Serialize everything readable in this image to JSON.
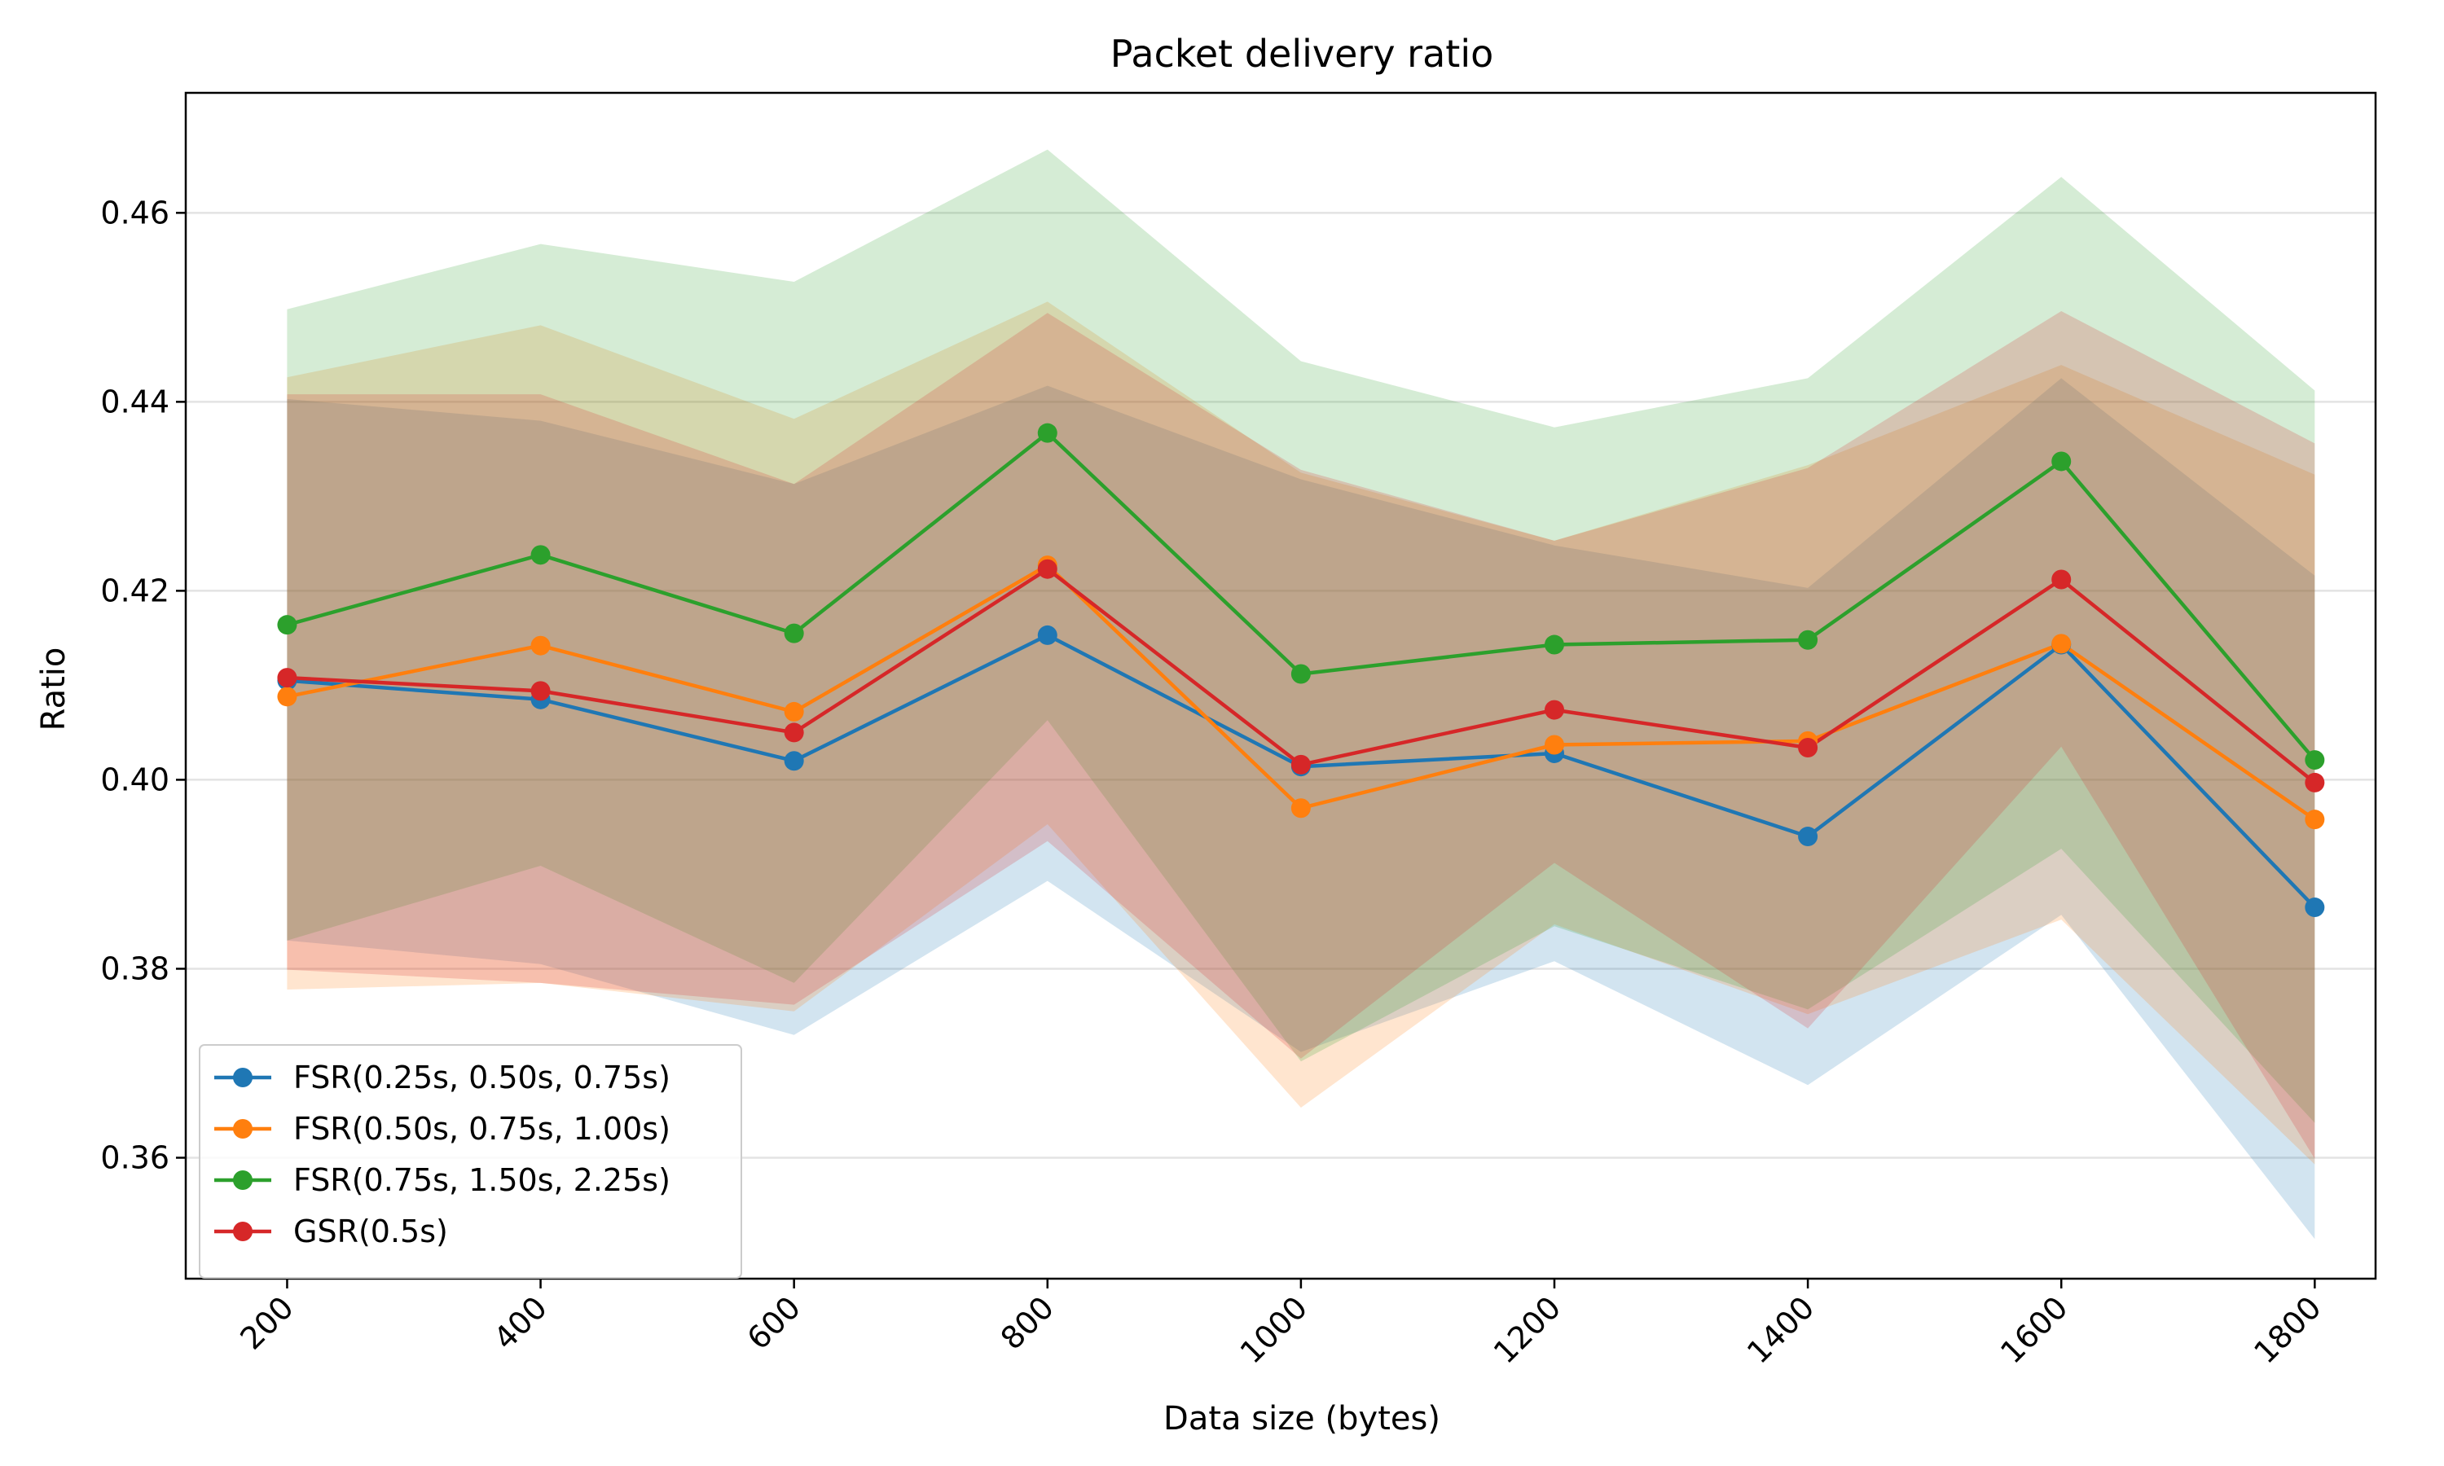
{
  "chart_data": {
    "type": "line",
    "title": "Packet delivery ratio",
    "xlabel": "Data size (bytes)",
    "ylabel": "Ratio",
    "x": [
      200,
      400,
      600,
      800,
      1000,
      1200,
      1400,
      1600,
      1800
    ],
    "x_tick_labels": [
      "200",
      "400",
      "600",
      "800",
      "1000",
      "1200",
      "1400",
      "1600",
      "1800"
    ],
    "y_ticks": [
      0.36,
      0.38,
      0.4,
      0.42,
      0.44,
      0.46
    ],
    "y_tick_labels": [
      "0.36",
      "0.38",
      "0.40",
      "0.42",
      "0.44",
      "0.46"
    ],
    "xlim": [
      120,
      1848
    ],
    "ylim": [
      0.3472,
      0.4727
    ],
    "grid": "horizontal",
    "legend_position": "lower-left",
    "series": [
      {
        "name": "FSR(0.25s, 0.50s, 0.75s)",
        "color": "#1f77b4",
        "values": [
          0.4105,
          0.4085,
          0.402,
          0.4153,
          0.4014,
          0.4028,
          0.394,
          0.4143,
          0.3865
        ],
        "band_lower": [
          0.383,
          0.3805,
          0.373,
          0.3893,
          0.3712,
          0.3808,
          0.3677,
          0.3857,
          0.3514
        ],
        "band_upper": [
          0.4403,
          0.438,
          0.4313,
          0.4417,
          0.4318,
          0.4248,
          0.4203,
          0.4425,
          0.4216
        ]
      },
      {
        "name": "FSR(0.50s, 0.75s, 1.00s)",
        "color": "#ff7f0e",
        "values": [
          0.4088,
          0.4142,
          0.4072,
          0.4227,
          0.397,
          0.4037,
          0.4041,
          0.4144,
          0.3958
        ],
        "band_lower": [
          0.3778,
          0.3785,
          0.3755,
          0.3953,
          0.3653,
          0.3847,
          0.3752,
          0.3852,
          0.3593
        ],
        "band_upper": [
          0.4426,
          0.4481,
          0.4382,
          0.4506,
          0.4325,
          0.4253,
          0.4333,
          0.4439,
          0.4323
        ]
      },
      {
        "name": "FSR(0.75s, 1.50s, 2.25s)",
        "color": "#2ca02c",
        "values": [
          0.4164,
          0.4238,
          0.4155,
          0.4367,
          0.4112,
          0.4143,
          0.4148,
          0.4337,
          0.4021
        ],
        "band_lower": [
          0.383,
          0.3909,
          0.3785,
          0.4063,
          0.3702,
          0.3845,
          0.3757,
          0.3927,
          0.3637
        ],
        "band_upper": [
          0.4498,
          0.4567,
          0.4527,
          0.4667,
          0.4443,
          0.4373,
          0.4425,
          0.4638,
          0.4412
        ]
      },
      {
        "name": "GSR(0.5s)",
        "color": "#d62728",
        "values": [
          0.4108,
          0.4094,
          0.405,
          0.4223,
          0.4016,
          0.4074,
          0.4034,
          0.4212,
          0.3997
        ],
        "band_lower": [
          0.3799,
          0.3785,
          0.3762,
          0.3935,
          0.3705,
          0.3912,
          0.3737,
          0.4035,
          0.3599
        ],
        "band_upper": [
          0.4408,
          0.4408,
          0.4313,
          0.4494,
          0.4328,
          0.4253,
          0.433,
          0.4496,
          0.4356
        ]
      }
    ]
  }
}
